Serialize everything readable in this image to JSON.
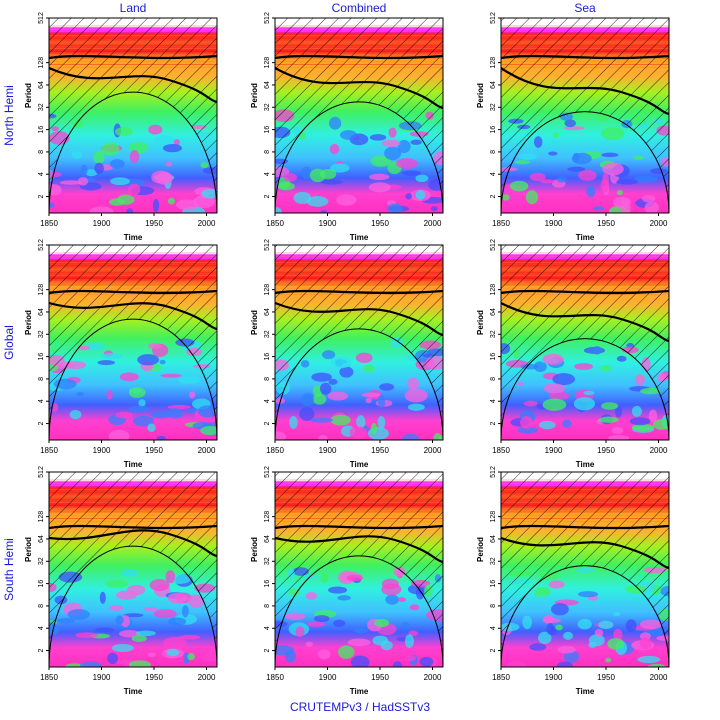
{
  "column_titles": [
    "Land",
    "Combined",
    "Sea"
  ],
  "row_titles": [
    "North Hemi",
    "Global",
    "South Hemi"
  ],
  "footer": "CRUTEMPv3 / HadSSTv3",
  "axes": {
    "x_label": "Time",
    "y_label": "Period",
    "xlim": [
      1850,
      2010
    ],
    "xticks": [
      1850,
      1900,
      1950,
      2000
    ],
    "ylim": [
      1.2,
      512
    ],
    "yticks": [
      2,
      4,
      8,
      16,
      32,
      64,
      128,
      512
    ],
    "ylog": true
  }
}
